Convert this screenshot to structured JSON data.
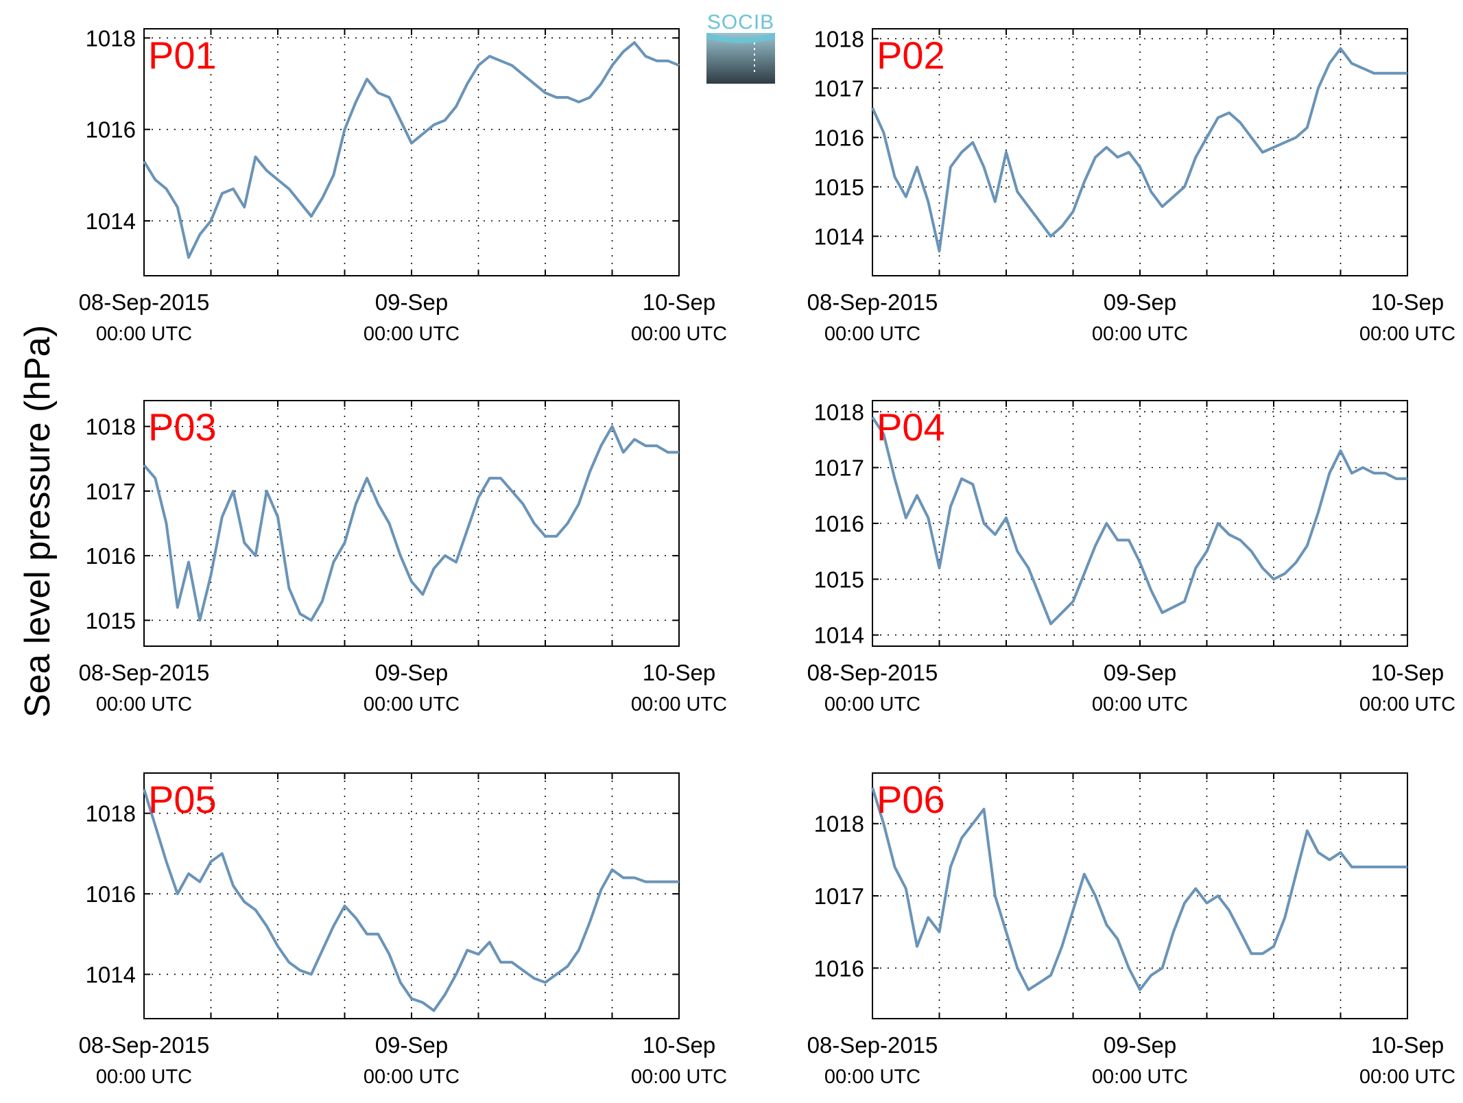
{
  "figure": {
    "ylabel": "Sea level pressure (hPa)",
    "logo_text": "SOCIB",
    "line_color": "#6a94b8",
    "label_color": "#ff0000"
  },
  "chart_data": [
    {
      "type": "line",
      "title": "P01",
      "xticklabels": [
        {
          "date": "08-Sep-2015",
          "time": "00:00 UTC"
        },
        {
          "date": "09-Sep",
          "time": "00:00 UTC"
        },
        {
          "date": "10-Sep",
          "time": "00:00 UTC"
        }
      ],
      "xlim": [
        0,
        48
      ],
      "ylim": [
        1012.8,
        1018.2
      ],
      "yticks": [
        1014,
        1016,
        1018
      ],
      "grid": true,
      "series": [
        {
          "x": [
            0,
            1,
            2,
            3,
            4,
            5,
            6,
            7,
            8,
            9,
            10,
            11,
            12,
            13,
            14,
            15,
            16,
            17,
            18,
            19,
            20,
            21,
            22,
            23,
            24,
            25,
            26,
            27,
            28,
            29,
            30,
            31,
            32,
            33,
            34,
            35,
            36,
            37,
            38,
            39,
            40,
            41,
            42,
            43,
            44,
            45,
            46,
            47,
            48
          ],
          "values": [
            1015.3,
            1014.9,
            1014.7,
            1014.3,
            1013.2,
            1013.7,
            1014.0,
            1014.6,
            1014.7,
            1014.3,
            1015.4,
            1015.1,
            1014.9,
            1014.7,
            1014.4,
            1014.1,
            1014.5,
            1015.0,
            1016.0,
            1016.6,
            1017.1,
            1016.8,
            1016.7,
            1016.2,
            1015.7,
            1015.9,
            1016.1,
            1016.2,
            1016.5,
            1017.0,
            1017.4,
            1017.6,
            1017.5,
            1017.4,
            1017.2,
            1017.0,
            1016.8,
            1016.7,
            1016.7,
            1016.6,
            1016.7,
            1017.0,
            1017.4,
            1017.7,
            1017.9,
            1017.6,
            1017.5,
            1017.5,
            1017.4
          ]
        }
      ]
    },
    {
      "type": "line",
      "title": "P02",
      "xticklabels": [
        {
          "date": "08-Sep-2015",
          "time": "00:00 UTC"
        },
        {
          "date": "09-Sep",
          "time": "00:00 UTC"
        },
        {
          "date": "10-Sep",
          "time": "00:00 UTC"
        }
      ],
      "xlim": [
        0,
        48
      ],
      "ylim": [
        1013.2,
        1018.2
      ],
      "yticks": [
        1014,
        1015,
        1016,
        1017,
        1018
      ],
      "grid": true,
      "series": [
        {
          "x": [
            0,
            1,
            2,
            3,
            4,
            5,
            6,
            7,
            8,
            9,
            10,
            11,
            12,
            13,
            14,
            15,
            16,
            17,
            18,
            19,
            20,
            21,
            22,
            23,
            24,
            25,
            26,
            27,
            28,
            29,
            30,
            31,
            32,
            33,
            34,
            35,
            36,
            37,
            38,
            39,
            40,
            41,
            42,
            43,
            44,
            45,
            46,
            47,
            48
          ],
          "values": [
            1016.6,
            1016.1,
            1015.2,
            1014.8,
            1015.4,
            1014.7,
            1013.7,
            1015.4,
            1015.7,
            1015.9,
            1015.4,
            1014.7,
            1015.7,
            1014.9,
            1014.6,
            1014.3,
            1014.0,
            1014.2,
            1014.5,
            1015.1,
            1015.6,
            1015.8,
            1015.6,
            1015.7,
            1015.4,
            1014.9,
            1014.6,
            1014.8,
            1015.0,
            1015.6,
            1016.0,
            1016.4,
            1016.5,
            1016.3,
            1016.0,
            1015.7,
            1015.8,
            1015.9,
            1016.0,
            1016.2,
            1017.0,
            1017.5,
            1017.8,
            1017.5,
            1017.4,
            1017.3,
            1017.3,
            1017.3,
            1017.3
          ]
        }
      ]
    },
    {
      "type": "line",
      "title": "P03",
      "xticklabels": [
        {
          "date": "08-Sep-2015",
          "time": "00:00 UTC"
        },
        {
          "date": "09-Sep",
          "time": "00:00 UTC"
        },
        {
          "date": "10-Sep",
          "time": "00:00 UTC"
        }
      ],
      "xlim": [
        0,
        48
      ],
      "ylim": [
        1014.6,
        1018.4
      ],
      "yticks": [
        1015,
        1016,
        1017,
        1018
      ],
      "grid": true,
      "series": [
        {
          "x": [
            0,
            1,
            2,
            3,
            4,
            5,
            6,
            7,
            8,
            9,
            10,
            11,
            12,
            13,
            14,
            15,
            16,
            17,
            18,
            19,
            20,
            21,
            22,
            23,
            24,
            25,
            26,
            27,
            28,
            29,
            30,
            31,
            32,
            33,
            34,
            35,
            36,
            37,
            38,
            39,
            40,
            41,
            42,
            43,
            44,
            45,
            46,
            47,
            48
          ],
          "values": [
            1017.4,
            1017.2,
            1016.5,
            1015.2,
            1015.9,
            1015.0,
            1015.7,
            1016.6,
            1017.0,
            1016.2,
            1016.0,
            1017.0,
            1016.6,
            1015.5,
            1015.1,
            1015.0,
            1015.3,
            1015.9,
            1016.2,
            1016.8,
            1017.2,
            1016.8,
            1016.5,
            1016.0,
            1015.6,
            1015.4,
            1015.8,
            1016.0,
            1015.9,
            1016.4,
            1016.9,
            1017.2,
            1017.2,
            1017.0,
            1016.8,
            1016.5,
            1016.3,
            1016.3,
            1016.5,
            1016.8,
            1017.3,
            1017.7,
            1018.0,
            1017.6,
            1017.8,
            1017.7,
            1017.7,
            1017.6,
            1017.6
          ]
        }
      ]
    },
    {
      "type": "line",
      "title": "P04",
      "xticklabels": [
        {
          "date": "08-Sep-2015",
          "time": "00:00 UTC"
        },
        {
          "date": "09-Sep",
          "time": "00:00 UTC"
        },
        {
          "date": "10-Sep",
          "time": "00:00 UTC"
        }
      ],
      "xlim": [
        0,
        48
      ],
      "ylim": [
        1013.8,
        1018.2
      ],
      "yticks": [
        1014,
        1015,
        1016,
        1017,
        1018
      ],
      "grid": true,
      "series": [
        {
          "x": [
            0,
            1,
            2,
            3,
            4,
            5,
            6,
            7,
            8,
            9,
            10,
            11,
            12,
            13,
            14,
            15,
            16,
            17,
            18,
            19,
            20,
            21,
            22,
            23,
            24,
            25,
            26,
            27,
            28,
            29,
            30,
            31,
            32,
            33,
            34,
            35,
            36,
            37,
            38,
            39,
            40,
            41,
            42,
            43,
            44,
            45,
            46,
            47,
            48
          ],
          "values": [
            1017.9,
            1017.6,
            1016.8,
            1016.1,
            1016.5,
            1016.1,
            1015.2,
            1016.3,
            1016.8,
            1016.7,
            1016.0,
            1015.8,
            1016.1,
            1015.5,
            1015.2,
            1014.7,
            1014.2,
            1014.4,
            1014.6,
            1015.1,
            1015.6,
            1016.0,
            1015.7,
            1015.7,
            1015.3,
            1014.8,
            1014.4,
            1014.5,
            1014.6,
            1015.2,
            1015.5,
            1016.0,
            1015.8,
            1015.7,
            1015.5,
            1015.2,
            1015.0,
            1015.1,
            1015.3,
            1015.6,
            1016.2,
            1016.9,
            1017.3,
            1016.9,
            1017.0,
            1016.9,
            1016.9,
            1016.8,
            1016.8
          ]
        }
      ]
    },
    {
      "type": "line",
      "title": "P05",
      "xticklabels": [
        {
          "date": "08-Sep-2015",
          "time": "00:00 UTC"
        },
        {
          "date": "09-Sep",
          "time": "00:00 UTC"
        },
        {
          "date": "10-Sep",
          "time": "00:00 UTC"
        }
      ],
      "xlim": [
        0,
        48
      ],
      "ylim": [
        1012.9,
        1019.0
      ],
      "yticks": [
        1014,
        1016,
        1018
      ],
      "grid": true,
      "series": [
        {
          "x": [
            0,
            1,
            2,
            3,
            4,
            5,
            6,
            7,
            8,
            9,
            10,
            11,
            12,
            13,
            14,
            15,
            16,
            17,
            18,
            19,
            20,
            21,
            22,
            23,
            24,
            25,
            26,
            27,
            28,
            29,
            30,
            31,
            32,
            33,
            34,
            35,
            36,
            37,
            38,
            39,
            40,
            41,
            42,
            43,
            44,
            45,
            46,
            47,
            48
          ],
          "values": [
            1018.6,
            1017.7,
            1016.8,
            1016.0,
            1016.5,
            1016.3,
            1016.8,
            1017.0,
            1016.2,
            1015.8,
            1015.6,
            1015.2,
            1014.7,
            1014.3,
            1014.1,
            1014.0,
            1014.6,
            1015.2,
            1015.7,
            1015.4,
            1015.0,
            1015.0,
            1014.5,
            1013.8,
            1013.4,
            1013.3,
            1013.1,
            1013.5,
            1014.0,
            1014.6,
            1014.5,
            1014.8,
            1014.3,
            1014.3,
            1014.1,
            1013.9,
            1013.8,
            1014.0,
            1014.2,
            1014.6,
            1015.3,
            1016.1,
            1016.6,
            1016.4,
            1016.4,
            1016.3,
            1016.3,
            1016.3,
            1016.3
          ]
        }
      ]
    },
    {
      "type": "line",
      "title": "P06",
      "xticklabels": [
        {
          "date": "08-Sep-2015",
          "time": "00:00 UTC"
        },
        {
          "date": "09-Sep",
          "time": "00:00 UTC"
        },
        {
          "date": "10-Sep",
          "time": "00:00 UTC"
        }
      ],
      "xlim": [
        0,
        48
      ],
      "ylim": [
        1015.3,
        1018.7
      ],
      "yticks": [
        1016,
        1017,
        1018
      ],
      "grid": true,
      "series": [
        {
          "x": [
            0,
            1,
            2,
            3,
            4,
            5,
            6,
            7,
            8,
            9,
            10,
            11,
            12,
            13,
            14,
            15,
            16,
            17,
            18,
            19,
            20,
            21,
            22,
            23,
            24,
            25,
            26,
            27,
            28,
            29,
            30,
            31,
            32,
            33,
            34,
            35,
            36,
            37,
            38,
            39,
            40,
            41,
            42,
            43,
            44,
            45,
            46,
            47,
            48
          ],
          "values": [
            1018.5,
            1018.0,
            1017.4,
            1017.1,
            1016.3,
            1016.7,
            1016.5,
            1017.4,
            1017.8,
            1018.0,
            1018.2,
            1017.0,
            1016.5,
            1016.0,
            1015.7,
            1015.8,
            1015.9,
            1016.3,
            1016.8,
            1017.3,
            1017.0,
            1016.6,
            1016.4,
            1016.0,
            1015.7,
            1015.9,
            1016.0,
            1016.5,
            1016.9,
            1017.1,
            1016.9,
            1017.0,
            1016.8,
            1016.5,
            1016.2,
            1016.2,
            1016.3,
            1016.7,
            1017.3,
            1017.9,
            1017.6,
            1017.5,
            1017.6,
            1017.4,
            1017.4,
            1017.4,
            1017.4,
            1017.4,
            1017.4
          ]
        }
      ]
    }
  ]
}
